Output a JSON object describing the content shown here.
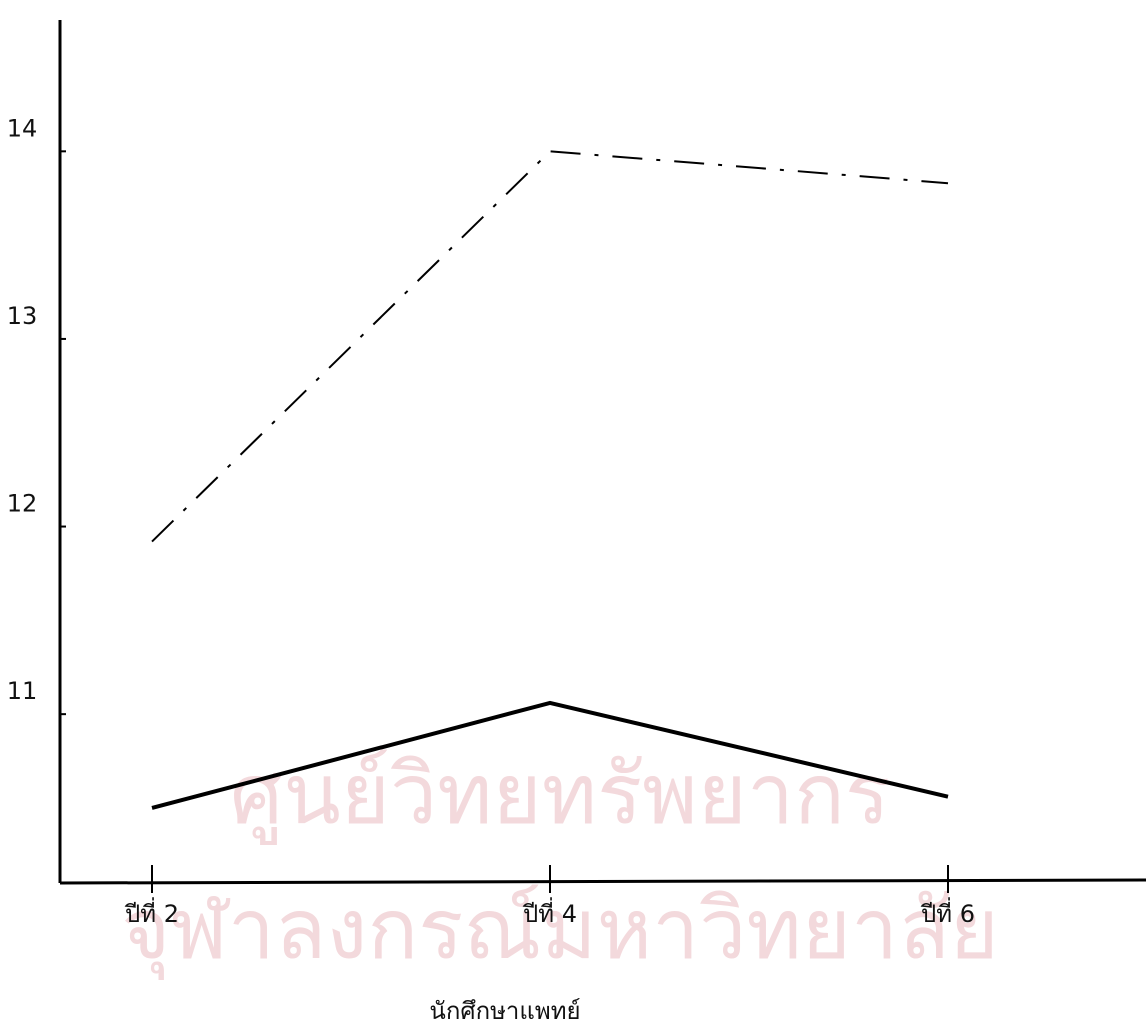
{
  "chart_data": {
    "type": "line",
    "x_label": "นักศึกษาแพทย์",
    "categories": [
      "ปีที่ 2",
      "ปีที่ 4",
      "ปีที่ 6"
    ],
    "series": [
      {
        "color": "#000000",
        "dash": "dash-dot",
        "values": [
          11.92,
          14.0,
          13.83
        ]
      },
      {
        "color": "#000000",
        "dash": "solid",
        "values": [
          10.5,
          11.06,
          10.56
        ]
      }
    ],
    "ylim": [
      10.1,
      14.7
    ],
    "yticks": [
      11,
      12,
      13,
      14
    ],
    "grid": false,
    "watermark": [
      "ศูนย์วิทยทรัพยากร",
      "จุฬาลงกรณ์มหาวิทยาลัย"
    ]
  }
}
